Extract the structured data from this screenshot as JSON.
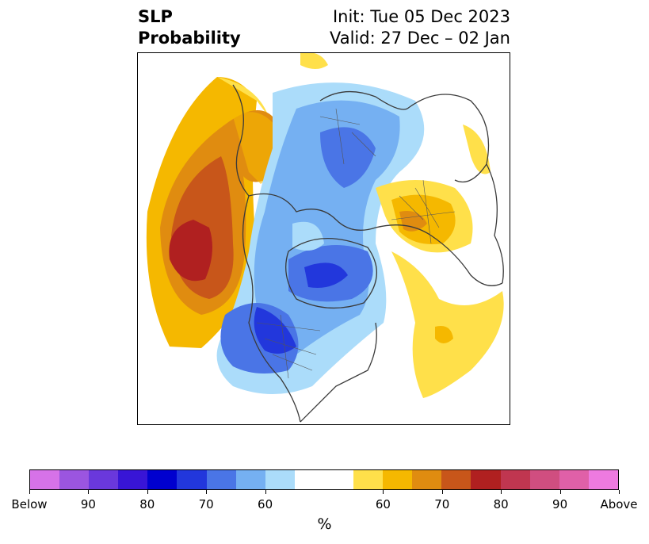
{
  "title": {
    "variable": "SLP",
    "metric": "Probability",
    "init": "Init: Tue 05 Dec 2023",
    "valid": "Valid: 27 Dec – 02 Jan"
  },
  "map": {
    "projection": "north-polar-stereographic",
    "region": "Northern Hemisphere (North America, North Pacific, North Atlantic, Europe)",
    "anomalies": [
      {
        "area": "North Pacific",
        "sign": "above",
        "peak_percent": 80
      },
      {
        "area": "Alaska / western Canada coast",
        "sign": "above",
        "peak_percent": 70
      },
      {
        "area": "Greenland / Arctic Canada",
        "sign": "below",
        "peak_percent": 80
      },
      {
        "area": "Central United States",
        "sign": "below",
        "peak_percent": 80
      },
      {
        "area": "Eastern North Atlantic",
        "sign": "above",
        "peak_percent": 65
      },
      {
        "area": "Western Russia",
        "sign": "above",
        "peak_percent": 70
      },
      {
        "area": "Siberia / Arctic",
        "sign": "below",
        "peak_percent": 70
      }
    ]
  },
  "colorbar": {
    "unit": "%",
    "colors": [
      "#d672e8",
      "#9b55e0",
      "#6a38dc",
      "#3815d6",
      "#0000cf",
      "#2237dc",
      "#4a75e6",
      "#75b0f2",
      "#abdcfa",
      "#ffffff",
      "#ffe04a",
      "#f5b800",
      "#e08c10",
      "#c8561a",
      "#b02020",
      "#c03650",
      "#d04e80",
      "#e060a8",
      "#ee7ae0"
    ],
    "widths": [
      1,
      1,
      1,
      1,
      1,
      1,
      1,
      1,
      1,
      2,
      1,
      1,
      1,
      1,
      1,
      1,
      1,
      1,
      1
    ],
    "ticks": [
      "Below",
      "90",
      "80",
      "70",
      "60",
      "60",
      "70",
      "80",
      "90",
      "Above"
    ],
    "tick_positions": [
      0,
      2,
      4,
      6,
      8,
      12,
      14,
      16,
      18,
      20
    ]
  }
}
